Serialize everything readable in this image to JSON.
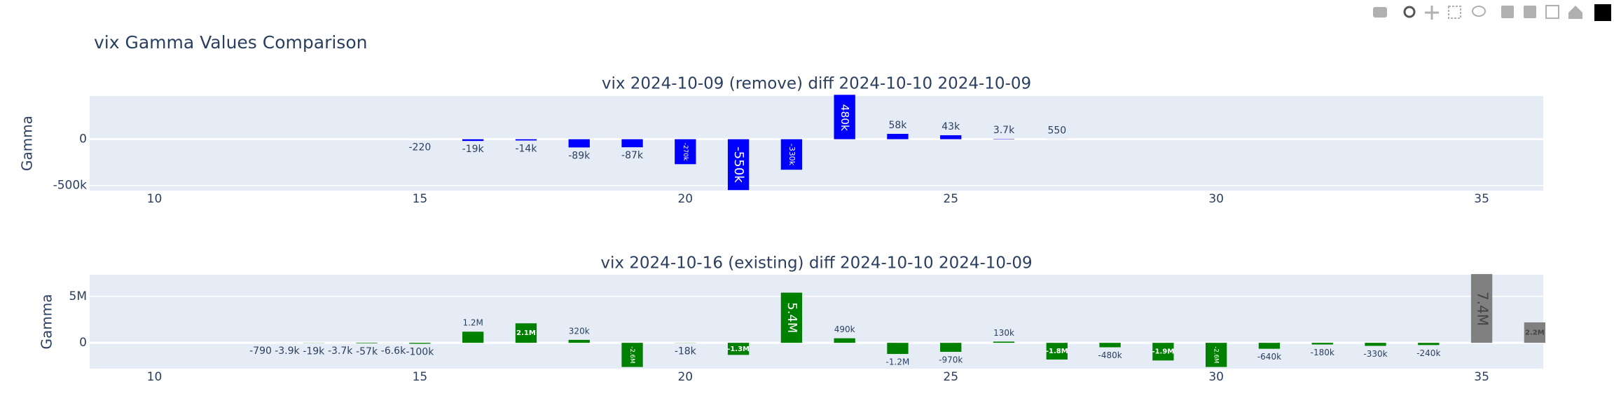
{
  "title": "vix Gamma Values Comparison",
  "chart_data": [
    {
      "type": "bar",
      "title": "vix 2024-10-09 (remove) diff 2024-10-10 2024-10-09",
      "y_label": "Gamma",
      "x": [
        15,
        16,
        17,
        18,
        19,
        20,
        21,
        22,
        23,
        24,
        25,
        26,
        27
      ],
      "values": [
        -220,
        -19000,
        -14000,
        -89000,
        -87000,
        -270000,
        -550000,
        -330000,
        480000,
        58000,
        43000,
        3700,
        550
      ],
      "value_labels": [
        "-220",
        "-19k",
        "-14k",
        "-89k",
        "-87k",
        "-270k",
        "-550k",
        "-330k",
        "480k",
        "58k",
        "43k",
        "3.7k",
        "550"
      ],
      "colors": [
        "#0000ff",
        "#0000ff",
        "#0000ff",
        "#0000ff",
        "#0000ff",
        "#0000ff",
        "#0000ff",
        "#0000ff",
        "#0000ff",
        "#0000ff",
        "#0000ff",
        "#0000ff",
        "#0000ff"
      ],
      "xlim": [
        8.78,
        36.16
      ],
      "xticks": [
        10,
        15,
        20,
        25,
        30,
        35
      ],
      "ylim": [
        -556000,
        467000
      ],
      "yticks": [
        {
          "value": -500000,
          "label": "-500k"
        },
        0
      ],
      "grid": true
    },
    {
      "type": "bar",
      "title": "vix 2024-10-16 (existing) diff 2024-10-10 2024-10-09",
      "y_label": "Gamma",
      "x": [
        12,
        12.5,
        13,
        13.5,
        14,
        14.5,
        15,
        16,
        17,
        18,
        19,
        20,
        21,
        22,
        23,
        24,
        25,
        26,
        27,
        28,
        29,
        30,
        31,
        32,
        33,
        34,
        35,
        36
      ],
      "values": [
        -790,
        -3900,
        -19000,
        -3700,
        -57000,
        -6600,
        -100000,
        1200000,
        2100000,
        320000,
        -2600000,
        -18000,
        -1300000,
        5400000,
        490000,
        -1200000,
        -970000,
        130000,
        -1800000,
        -480000,
        -1900000,
        -2600000,
        -640000,
        -180000,
        -330000,
        -240000,
        7400000,
        2200000
      ],
      "value_labels": [
        "-790",
        "-3.9k",
        "-19k",
        "-3.7k",
        "-57k",
        "-6.6k",
        "-100k",
        "1.2M",
        "2.1M",
        "320k",
        "-2.6M",
        "-18k",
        "-1.3M",
        "5.4M",
        "490k",
        "-1.2M",
        "-970k",
        "130k",
        "-1.8M",
        "-480k",
        "-1.9M",
        "-2.6M",
        "-640k",
        "-180k",
        "-330k",
        "-240k",
        "7.4M",
        "2.2M"
      ],
      "colors": [
        "#008000",
        "#008000",
        "#008000",
        "#008000",
        "#008000",
        "#008000",
        "#008000",
        "#008000",
        "#008000",
        "#008000",
        "#008000",
        "#008000",
        "#008000",
        "#008000",
        "#008000",
        "#008000",
        "#008000",
        "#008000",
        "#008000",
        "#008000",
        "#008000",
        "#008000",
        "#008000",
        "#008000",
        "#008000",
        "#008000",
        "#808080",
        "#808080"
      ],
      "xlim": [
        8.78,
        36.16
      ],
      "xticks": [
        10,
        15,
        20,
        25,
        30,
        35
      ],
      "ylim": [
        -2780000,
        7330000
      ],
      "yticks": [
        0,
        {
          "value": 5000000,
          "label": "5M"
        }
      ],
      "grid": true
    }
  ]
}
